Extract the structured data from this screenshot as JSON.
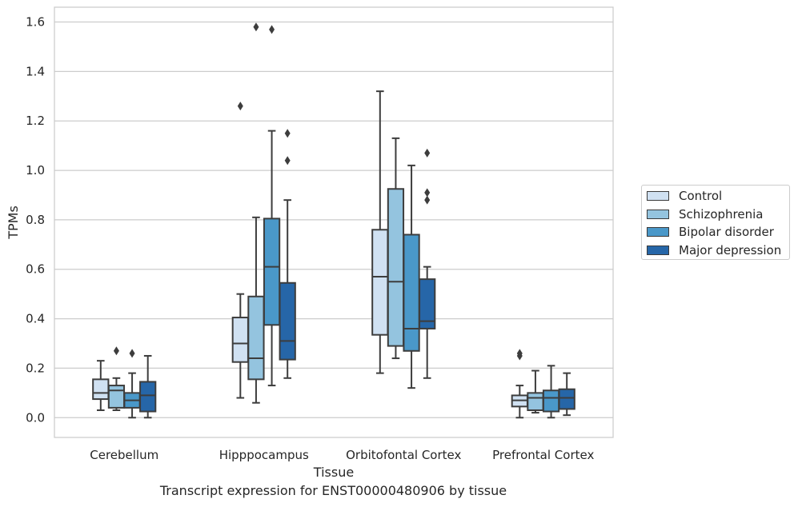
{
  "chart_data": {
    "type": "box",
    "title": "Transcript expression for ENST00000480906 by tissue",
    "xlabel": "Tissue",
    "ylabel": "TPMs",
    "ylim": [
      -0.08,
      1.66
    ],
    "yticks": [
      "0.0",
      "0.2",
      "0.4",
      "0.6",
      "0.8",
      "1.0",
      "1.2",
      "1.4",
      "1.6"
    ],
    "grid": "horizontal",
    "legend_position": "right",
    "categories": [
      "Cerebellum",
      "Hipppocampus",
      "Orbitofontal Cortex",
      "Prefrontal Cortex"
    ],
    "series": [
      {
        "name": "Control",
        "color": "#d0e1f2",
        "boxes": [
          {
            "whislo": 0.03,
            "q1": 0.075,
            "med": 0.1,
            "q3": 0.155,
            "whishi": 0.23,
            "fliers": []
          },
          {
            "whislo": 0.08,
            "q1": 0.225,
            "med": 0.3,
            "q3": 0.405,
            "whishi": 0.5,
            "fliers": [
              1.26
            ]
          },
          {
            "whislo": 0.18,
            "q1": 0.335,
            "med": 0.57,
            "q3": 0.76,
            "whishi": 1.32,
            "fliers": []
          },
          {
            "whislo": 0.0,
            "q1": 0.045,
            "med": 0.07,
            "q3": 0.09,
            "whishi": 0.13,
            "fliers": [
              0.25,
              0.26
            ]
          }
        ]
      },
      {
        "name": "Schizophrenia",
        "color": "#94c4df",
        "boxes": [
          {
            "whislo": 0.03,
            "q1": 0.04,
            "med": 0.11,
            "q3": 0.13,
            "whishi": 0.16,
            "fliers": [
              0.27
            ]
          },
          {
            "whislo": 0.06,
            "q1": 0.155,
            "med": 0.24,
            "q3": 0.49,
            "whishi": 0.81,
            "fliers": [
              1.58
            ]
          },
          {
            "whislo": 0.24,
            "q1": 0.29,
            "med": 0.55,
            "q3": 0.925,
            "whishi": 1.13,
            "fliers": []
          },
          {
            "whislo": 0.02,
            "q1": 0.03,
            "med": 0.08,
            "q3": 0.1,
            "whishi": 0.19,
            "fliers": []
          }
        ]
      },
      {
        "name": "Bipolar disorder",
        "color": "#4a98c9",
        "boxes": [
          {
            "whislo": 0.0,
            "q1": 0.04,
            "med": 0.07,
            "q3": 0.1,
            "whishi": 0.18,
            "fliers": [
              0.26
            ]
          },
          {
            "whislo": 0.13,
            "q1": 0.375,
            "med": 0.61,
            "q3": 0.805,
            "whishi": 1.16,
            "fliers": [
              1.57
            ]
          },
          {
            "whislo": 0.12,
            "q1": 0.27,
            "med": 0.36,
            "q3": 0.74,
            "whishi": 1.02,
            "fliers": []
          },
          {
            "whislo": 0.0,
            "q1": 0.025,
            "med": 0.08,
            "q3": 0.11,
            "whishi": 0.21,
            "fliers": []
          }
        ]
      },
      {
        "name": "Major depression",
        "color": "#2666a8",
        "boxes": [
          {
            "whislo": 0.0,
            "q1": 0.025,
            "med": 0.09,
            "q3": 0.145,
            "whishi": 0.25,
            "fliers": []
          },
          {
            "whislo": 0.16,
            "q1": 0.235,
            "med": 0.31,
            "q3": 0.545,
            "whishi": 0.88,
            "fliers": [
              1.04,
              1.15
            ]
          },
          {
            "whislo": 0.16,
            "q1": 0.36,
            "med": 0.39,
            "q3": 0.56,
            "whishi": 0.61,
            "fliers": [
              0.88,
              0.91,
              1.07
            ]
          },
          {
            "whislo": 0.01,
            "q1": 0.035,
            "med": 0.08,
            "q3": 0.115,
            "whishi": 0.18,
            "fliers": []
          }
        ]
      }
    ]
  }
}
